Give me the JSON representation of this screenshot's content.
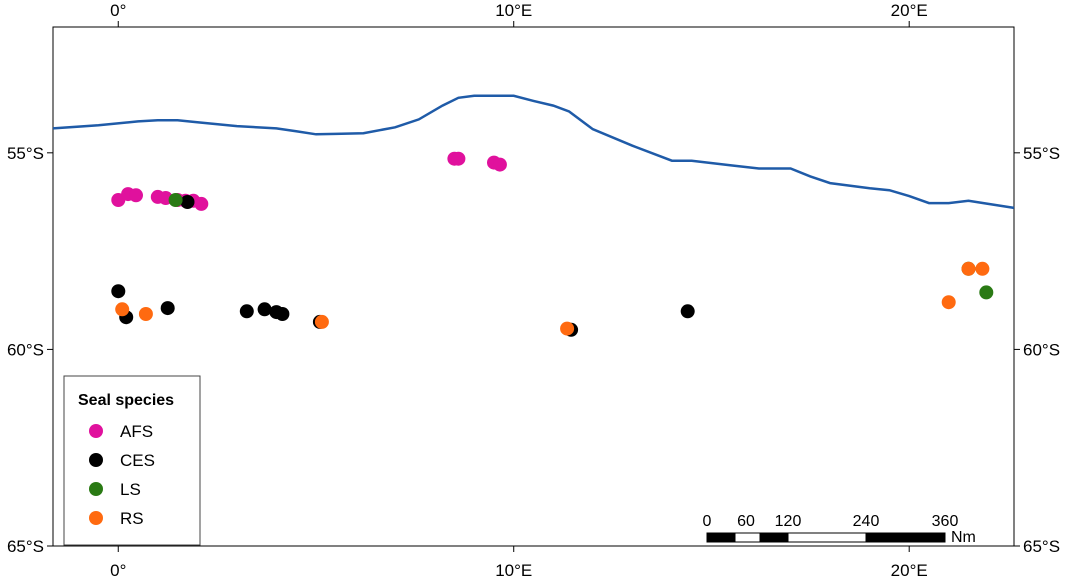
{
  "chart_data": {
    "type": "scatter",
    "xlim": [
      -1.65,
      22.65
    ],
    "ylim": [
      -65.0,
      -51.8
    ],
    "x_ticks": [
      {
        "value": 0,
        "label": "0°"
      },
      {
        "value": 10,
        "label": "10°E"
      },
      {
        "value": 20,
        "label": "20°E"
      }
    ],
    "y_ticks": [
      {
        "value": -55,
        "label": "55°S"
      },
      {
        "value": -60,
        "label": "60°S"
      },
      {
        "value": -65,
        "label": "65°S"
      }
    ],
    "grid": false,
    "legend_position": "bottom-left",
    "front_line": {
      "color": "#1f5ba8",
      "points": [
        [
          -1.65,
          -54.38
        ],
        [
          -0.5,
          -54.3
        ],
        [
          0.5,
          -54.2
        ],
        [
          1.0,
          -54.17
        ],
        [
          1.5,
          -54.17
        ],
        [
          2.0,
          -54.22
        ],
        [
          3.0,
          -54.32
        ],
        [
          4.0,
          -54.38
        ],
        [
          4.5,
          -54.45
        ],
        [
          5.0,
          -54.53
        ],
        [
          5.5,
          -54.52
        ],
        [
          6.2,
          -54.5
        ],
        [
          7.0,
          -54.35
        ],
        [
          7.6,
          -54.15
        ],
        [
          8.2,
          -53.8
        ],
        [
          8.6,
          -53.6
        ],
        [
          9.0,
          -53.55
        ],
        [
          10.0,
          -53.55
        ],
        [
          10.5,
          -53.68
        ],
        [
          11.0,
          -53.8
        ],
        [
          11.4,
          -53.95
        ],
        [
          12.0,
          -54.4
        ],
        [
          13.0,
          -54.82
        ],
        [
          14.0,
          -55.2
        ],
        [
          14.5,
          -55.2
        ],
        [
          15.5,
          -55.32
        ],
        [
          16.2,
          -55.4
        ],
        [
          17.0,
          -55.4
        ],
        [
          17.5,
          -55.6
        ],
        [
          18.0,
          -55.77
        ],
        [
          19.0,
          -55.9
        ],
        [
          19.5,
          -55.95
        ],
        [
          20.0,
          -56.1
        ],
        [
          20.5,
          -56.28
        ],
        [
          21.0,
          -56.28
        ],
        [
          21.5,
          -56.22
        ],
        [
          22.0,
          -56.3
        ],
        [
          22.65,
          -56.4
        ]
      ]
    },
    "legend": {
      "title": "Seal species",
      "entries": [
        {
          "label": "AFS",
          "color": "#e0119d"
        },
        {
          "label": "CES",
          "color": "#000000"
        },
        {
          "label": "LS",
          "color": "#2a7a14"
        },
        {
          "label": "RS",
          "color": "#ff6a10"
        }
      ]
    },
    "series": [
      {
        "name": "AFS",
        "color": "#e0119d",
        "points": [
          [
            0.0,
            -56.2
          ],
          [
            0.25,
            -56.05
          ],
          [
            0.45,
            -56.08
          ],
          [
            1.0,
            -56.12
          ],
          [
            1.2,
            -56.15
          ],
          [
            1.5,
            -56.2
          ],
          [
            1.7,
            -56.22
          ],
          [
            1.9,
            -56.22
          ],
          [
            2.1,
            -56.3
          ],
          [
            8.5,
            -55.15
          ],
          [
            8.6,
            -55.15
          ],
          [
            9.5,
            -55.25
          ],
          [
            9.65,
            -55.3
          ]
        ]
      },
      {
        "name": "CES",
        "color": "#000000",
        "points": [
          [
            0.0,
            -58.52
          ],
          [
            0.2,
            -59.18
          ],
          [
            1.25,
            -58.95
          ],
          [
            1.75,
            -56.25
          ],
          [
            3.25,
            -59.03
          ],
          [
            3.7,
            -58.98
          ],
          [
            4.0,
            -59.05
          ],
          [
            4.15,
            -59.1
          ],
          [
            5.1,
            -59.3
          ],
          [
            11.45,
            -59.5
          ],
          [
            14.4,
            -59.03
          ]
        ]
      },
      {
        "name": "LS",
        "color": "#2a7a14",
        "points": [
          [
            1.45,
            -56.2
          ],
          [
            21.5,
            -57.95
          ],
          [
            21.95,
            -58.55
          ]
        ]
      },
      {
        "name": "RS",
        "color": "#ff6a10",
        "points": [
          [
            0.1,
            -58.98
          ],
          [
            0.7,
            -59.1
          ],
          [
            5.15,
            -59.3
          ],
          [
            11.35,
            -59.47
          ],
          [
            21.0,
            -58.8
          ],
          [
            21.5,
            -57.95
          ],
          [
            21.85,
            -57.95
          ]
        ]
      }
    ],
    "scale_bar": {
      "labels": [
        "0",
        "60",
        "120",
        "240",
        "360"
      ],
      "unit": "Nm"
    }
  }
}
